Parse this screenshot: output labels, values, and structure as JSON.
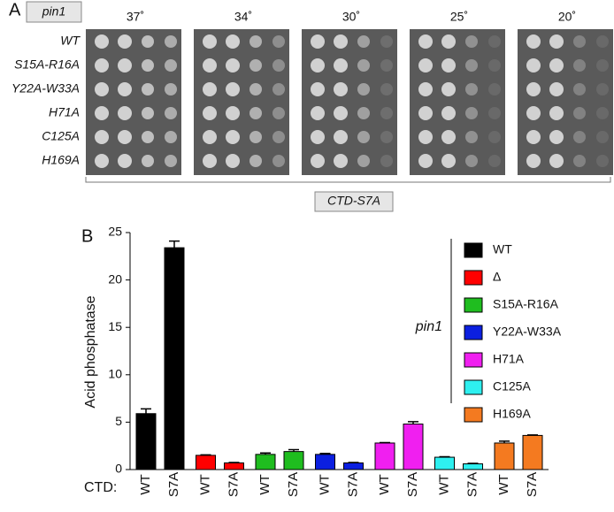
{
  "panel_a": {
    "label": "A",
    "strain_label": "pin1",
    "temperatures": [
      "37˚",
      "34˚",
      "30˚",
      "25˚",
      "20˚"
    ],
    "rows": [
      "WT",
      "S15A-R16A",
      "Y22A-W33A",
      "H71A",
      "C125A",
      "H169A"
    ],
    "bracket_label": "CTD-S7A"
  },
  "chart_data": {
    "type": "bar",
    "panel_label": "B",
    "y_label": "Acid phosphatase",
    "x_label": "CTD:",
    "ylim": [
      0,
      25
    ],
    "yticks": [
      0,
      5,
      10,
      15,
      20,
      25
    ],
    "legend_title": "pin1",
    "series": [
      {
        "name": "WT",
        "color": "#000000",
        "categories": [
          "WT",
          "S7A"
        ],
        "values": [
          5.9,
          23.4
        ],
        "errors": [
          0.5,
          0.7
        ]
      },
      {
        "name": "Δ",
        "color": "#ff0000",
        "categories": [
          "WT",
          "S7A"
        ],
        "values": [
          1.5,
          0.7
        ],
        "errors": [
          0.05,
          0.05
        ]
      },
      {
        "name": "S15A-R16A",
        "color": "#1fbd1f",
        "categories": [
          "WT",
          "S7A"
        ],
        "values": [
          1.6,
          1.9
        ],
        "errors": [
          0.15,
          0.2
        ]
      },
      {
        "name": "Y22A-W33A",
        "color": "#0b1fe0",
        "categories": [
          "WT",
          "S7A"
        ],
        "values": [
          1.6,
          0.7
        ],
        "errors": [
          0.1,
          0.05
        ]
      },
      {
        "name": "H71A",
        "color": "#f01ff0",
        "categories": [
          "WT",
          "S7A"
        ],
        "values": [
          2.8,
          4.8
        ],
        "errors": [
          0.05,
          0.25
        ]
      },
      {
        "name": "C125A",
        "color": "#2ef0f0",
        "categories": [
          "WT",
          "S7A"
        ],
        "values": [
          1.3,
          0.6
        ],
        "errors": [
          0.05,
          0.05
        ]
      },
      {
        "name": "H169A",
        "color": "#f47a20",
        "categories": [
          "WT",
          "S7A"
        ],
        "values": [
          2.8,
          3.6
        ],
        "errors": [
          0.2,
          0.05
        ]
      }
    ]
  }
}
